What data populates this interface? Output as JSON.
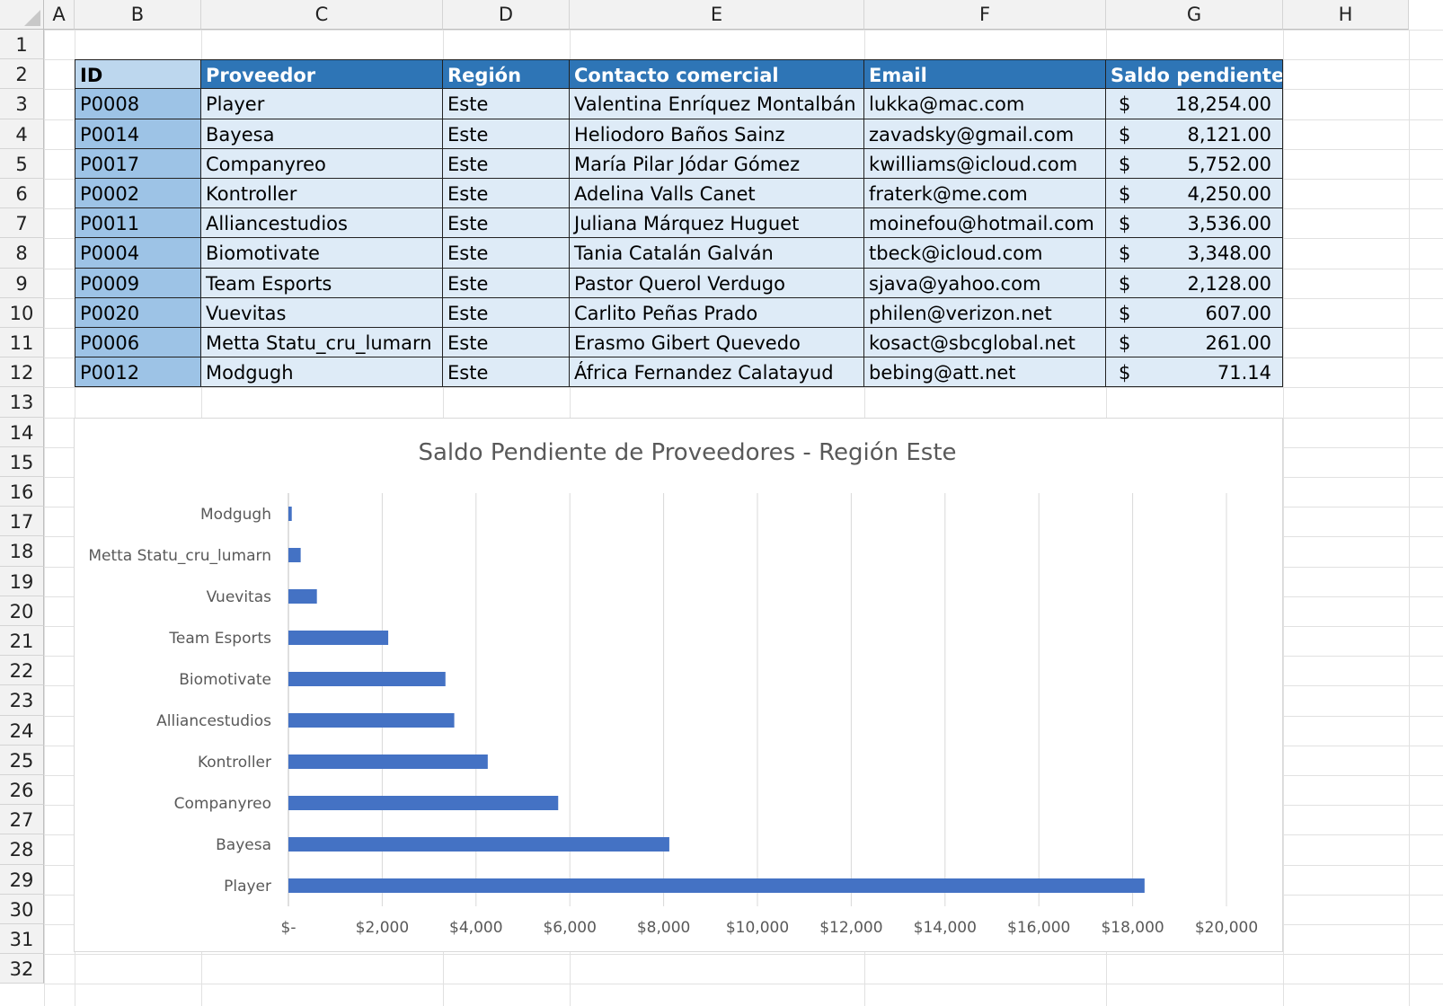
{
  "columns": [
    "A",
    "B",
    "C",
    "D",
    "E",
    "F",
    "G",
    "H"
  ],
  "rows": [
    "1",
    "2",
    "3",
    "4",
    "5",
    "6",
    "7",
    "8",
    "9",
    "10",
    "11",
    "12",
    "13",
    "14",
    "15",
    "16",
    "17",
    "18",
    "19",
    "20",
    "21",
    "22",
    "23",
    "24",
    "25",
    "26",
    "27",
    "28",
    "29",
    "30",
    "31",
    "32"
  ],
  "table": {
    "headers": [
      "ID",
      "Proveedor",
      "Región",
      "Contacto comercial",
      "Email",
      "Saldo pendiente"
    ],
    "currency_symbol": "$",
    "rows": [
      {
        "id": "P0008",
        "proveedor": "Player",
        "region": "Este",
        "contacto": "Valentina Enríquez Montalbán",
        "email": "lukka@mac.com",
        "saldo": "18,254.00"
      },
      {
        "id": "P0014",
        "proveedor": "Bayesa",
        "region": "Este",
        "contacto": "Heliodoro Baños Sainz",
        "email": "zavadsky@gmail.com",
        "saldo": "8,121.00"
      },
      {
        "id": "P0017",
        "proveedor": "Companyreo",
        "region": "Este",
        "contacto": "María Pilar Jódar Gómez",
        "email": "kwilliams@icloud.com",
        "saldo": "5,752.00"
      },
      {
        "id": "P0002",
        "proveedor": "Kontroller",
        "region": "Este",
        "contacto": "Adelina Valls Canet",
        "email": "fraterk@me.com",
        "saldo": "4,250.00"
      },
      {
        "id": "P0011",
        "proveedor": "Alliancestudios",
        "region": "Este",
        "contacto": "Juliana Márquez Huguet",
        "email": "moinefou@hotmail.com",
        "saldo": "3,536.00"
      },
      {
        "id": "P0004",
        "proveedor": "Biomotivate",
        "region": "Este",
        "contacto": "Tania Catalán Galván",
        "email": "tbeck@icloud.com",
        "saldo": "3,348.00"
      },
      {
        "id": "P0009",
        "proveedor": "Team Esports",
        "region": "Este",
        "contacto": "Pastor Querol Verdugo",
        "email": "sjava@yahoo.com",
        "saldo": "2,128.00"
      },
      {
        "id": "P0020",
        "proveedor": "Vuevitas",
        "region": "Este",
        "contacto": "Carlito Peñas Prado",
        "email": "philen@verizon.net",
        "saldo": "607.00"
      },
      {
        "id": "P0006",
        "proveedor": "Metta Statu_cru_lumarn",
        "region": "Este",
        "contacto": "Erasmo Gibert Quevedo",
        "email": "kosact@sbcglobal.net",
        "saldo": "261.00"
      },
      {
        "id": "P0012",
        "proveedor": "Modgugh",
        "region": "Este",
        "contacto": "África Fernandez Calatayud",
        "email": "bebing@att.net",
        "saldo": "71.14"
      }
    ]
  },
  "colors": {
    "header_blue": "#2e75b6",
    "id_header": "#bdd7ee",
    "id_cells": "#9dc3e6",
    "data_cells": "#deebf7",
    "bar": "#4472c4"
  },
  "chart_data": {
    "type": "bar",
    "orientation": "horizontal",
    "title": "Saldo Pendiente de Proveedores - Región Este",
    "categories": [
      "Modgugh",
      "Metta Statu_cru_lumarn",
      "Vuevitas",
      "Team Esports",
      "Biomotivate",
      "Alliancestudios",
      "Kontroller",
      "Companyreo",
      "Bayesa",
      "Player"
    ],
    "values": [
      71.14,
      261,
      607,
      2128,
      3348,
      3536,
      4250,
      5752,
      8121,
      18254
    ],
    "xlim": [
      0,
      20000
    ],
    "x_ticks": [
      0,
      2000,
      4000,
      6000,
      8000,
      10000,
      12000,
      14000,
      16000,
      18000,
      20000
    ],
    "x_tick_labels": [
      "$-",
      "$2,000",
      "$4,000",
      "$6,000",
      "$8,000",
      "$10,000",
      "$12,000",
      "$14,000",
      "$16,000",
      "$18,000",
      "$20,000"
    ],
    "grid": "vertical",
    "legend": "none",
    "bar_color": "#4472c4"
  }
}
